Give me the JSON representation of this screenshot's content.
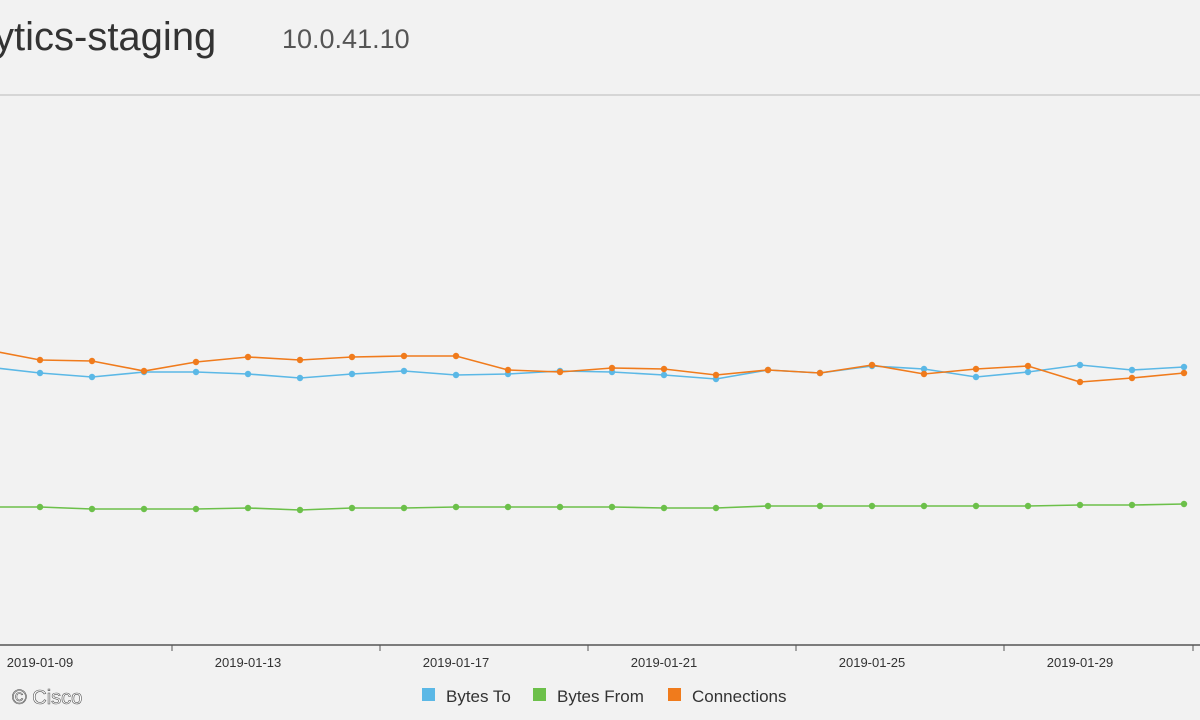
{
  "header": {
    "title": "ytics-staging",
    "address": "10.0.41.10"
  },
  "watermark": "© Cisco",
  "chart_data": {
    "type": "line",
    "categories": [
      null,
      "2019-01-09",
      null,
      null,
      null,
      "2019-01-13",
      null,
      null,
      null,
      "2019-01-17",
      null,
      null,
      null,
      "2019-01-21",
      null,
      null,
      null,
      "2019-01-25",
      null,
      null,
      null,
      "2019-01-29",
      null,
      null
    ],
    "ylim": [
      0,
      550
    ],
    "series": [
      {
        "name": "Bytes To",
        "color": "#5bb8e6",
        "values": [
          278,
          272,
          268,
          273,
          273,
          271,
          267,
          271,
          274,
          270,
          271,
          274,
          273,
          270,
          266,
          275,
          272,
          279,
          276,
          268,
          273,
          280,
          275,
          278
        ]
      },
      {
        "name": "Bytes From",
        "color": "#6cc04a",
        "values": [
          138,
          138,
          136,
          136,
          136,
          137,
          135,
          137,
          137,
          138,
          138,
          138,
          138,
          137,
          137,
          139,
          139,
          139,
          139,
          139,
          139,
          140,
          140,
          141
        ]
      },
      {
        "name": "Connections",
        "color": "#f07b1c",
        "values": [
          295,
          285,
          284,
          274,
          283,
          288,
          285,
          288,
          289,
          289,
          275,
          273,
          277,
          276,
          270,
          275,
          272,
          280,
          271,
          276,
          279,
          263,
          267,
          272
        ]
      }
    ]
  }
}
